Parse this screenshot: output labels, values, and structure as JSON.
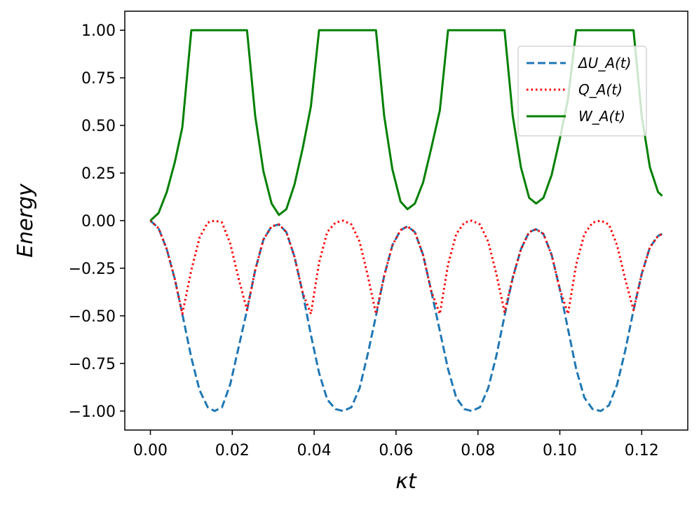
{
  "chart_data": {
    "type": "line",
    "xlabel": "κt",
    "ylabel": "Energy",
    "xlim": [
      -0.00625,
      0.13125
    ],
    "ylim": [
      -1.1,
      1.1
    ],
    "xticks": [
      0.0,
      0.02,
      0.04,
      0.06,
      0.08,
      0.1,
      0.12
    ],
    "xtick_labels": [
      "0.00",
      "0.02",
      "0.04",
      "0.06",
      "0.08",
      "0.10",
      "0.12"
    ],
    "yticks": [
      1.0,
      0.75,
      0.5,
      0.25,
      0.0,
      -0.25,
      -0.5,
      -0.75,
      -1.0
    ],
    "ytick_labels": [
      "1.00",
      "0.75",
      "0.50",
      "0.25",
      "0.00",
      "−0.25",
      "−0.50",
      "−0.75",
      "−1.00"
    ],
    "grid": false,
    "legend_position": "top-right",
    "x": [
      0.0,
      0.002,
      0.004,
      0.006,
      0.0078,
      0.01,
      0.012,
      0.014,
      0.0157,
      0.0175,
      0.0195,
      0.0215,
      0.0236,
      0.0256,
      0.0276,
      0.0296,
      0.0314,
      0.0332,
      0.0352,
      0.0372,
      0.0392,
      0.0412,
      0.0432,
      0.0452,
      0.0471,
      0.0491,
      0.0511,
      0.0531,
      0.0551,
      0.0571,
      0.0591,
      0.0611,
      0.0628,
      0.0646,
      0.0666,
      0.0686,
      0.0707,
      0.0727,
      0.0747,
      0.0767,
      0.0785,
      0.0805,
      0.0825,
      0.0845,
      0.0865,
      0.0885,
      0.0905,
      0.0925,
      0.0942,
      0.096,
      0.098,
      0.1,
      0.102,
      0.104,
      0.106,
      0.108,
      0.11,
      0.112,
      0.114,
      0.116,
      0.118,
      0.12,
      0.122,
      0.124,
      0.125
    ],
    "series": [
      {
        "name": "ΔU_A(t)",
        "color": "#1f77b4",
        "style": "dashed",
        "values": [
          0.0,
          -0.04,
          -0.15,
          -0.31,
          -0.49,
          -0.72,
          -0.89,
          -0.98,
          -1.0,
          -0.98,
          -0.86,
          -0.67,
          -0.47,
          -0.26,
          -0.1,
          -0.03,
          -0.02,
          -0.06,
          -0.19,
          -0.38,
          -0.6,
          -0.8,
          -0.94,
          -0.99,
          -1.0,
          -0.98,
          -0.88,
          -0.7,
          -0.5,
          -0.29,
          -0.13,
          -0.05,
          -0.03,
          -0.06,
          -0.18,
          -0.37,
          -0.58,
          -0.78,
          -0.93,
          -0.99,
          -1.0,
          -0.98,
          -0.88,
          -0.71,
          -0.5,
          -0.3,
          -0.15,
          -0.06,
          -0.045,
          -0.07,
          -0.18,
          -0.36,
          -0.57,
          -0.78,
          -0.93,
          -0.99,
          -1.0,
          -0.97,
          -0.86,
          -0.68,
          -0.47,
          -0.28,
          -0.14,
          -0.08,
          -0.07
        ]
      },
      {
        "name": "Q_A(t)",
        "color": "#ff0000",
        "style": "dotted",
        "values": [
          0.0,
          -0.04,
          -0.15,
          -0.31,
          -0.49,
          -0.26,
          -0.09,
          -0.01,
          0.0,
          -0.01,
          -0.12,
          -0.3,
          -0.47,
          -0.26,
          -0.1,
          -0.03,
          -0.02,
          -0.06,
          -0.19,
          -0.38,
          -0.49,
          -0.22,
          -0.06,
          -0.01,
          0.0,
          -0.02,
          -0.11,
          -0.29,
          -0.49,
          -0.29,
          -0.13,
          -0.05,
          -0.03,
          -0.06,
          -0.18,
          -0.37,
          -0.49,
          -0.23,
          -0.07,
          -0.01,
          0.0,
          -0.02,
          -0.11,
          -0.28,
          -0.48,
          -0.3,
          -0.15,
          -0.06,
          -0.045,
          -0.07,
          -0.18,
          -0.36,
          -0.49,
          -0.23,
          -0.07,
          -0.01,
          0.0,
          -0.02,
          -0.13,
          -0.31,
          -0.47,
          -0.28,
          -0.14,
          -0.08,
          -0.07
        ]
      },
      {
        "name": "W_A(t)",
        "color": "#008000",
        "style": "solid",
        "values": [
          0.0,
          0.04,
          0.15,
          0.31,
          0.49,
          1.0,
          1.0,
          1.0,
          1.0,
          1.0,
          1.0,
          1.0,
          1.0,
          0.55,
          0.26,
          0.09,
          0.03,
          0.06,
          0.19,
          0.38,
          0.6,
          1.0,
          1.0,
          1.0,
          1.0,
          1.0,
          1.0,
          1.0,
          1.0,
          0.55,
          0.27,
          0.1,
          0.06,
          0.09,
          0.2,
          0.38,
          0.58,
          1.0,
          1.0,
          1.0,
          1.0,
          1.0,
          1.0,
          1.0,
          1.0,
          0.55,
          0.28,
          0.12,
          0.09,
          0.12,
          0.24,
          0.43,
          0.64,
          1.0,
          1.0,
          1.0,
          1.0,
          1.0,
          1.0,
          1.0,
          1.0,
          0.55,
          0.28,
          0.15,
          0.13
        ]
      }
    ]
  }
}
